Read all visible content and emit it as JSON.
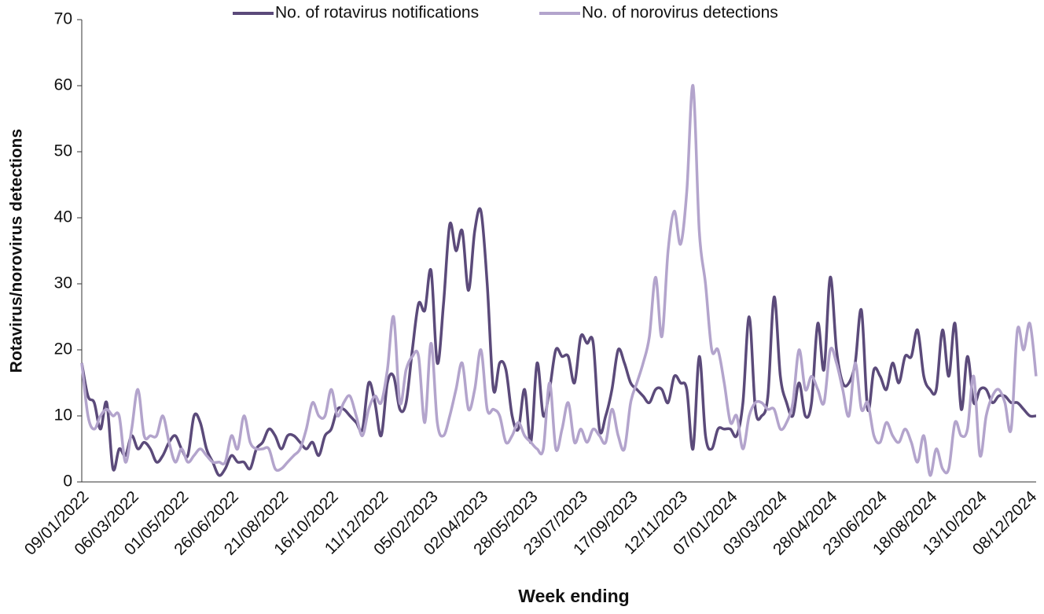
{
  "chart_data": {
    "type": "line",
    "x_label": "Week ending",
    "y_label": "Rotavirus/norovirus detections",
    "categories": [
      "09/01/2022",
      null,
      null,
      null,
      null,
      null,
      null,
      null,
      "06/03/2022",
      null,
      null,
      null,
      null,
      null,
      null,
      null,
      "01/05/2022",
      null,
      null,
      null,
      null,
      null,
      null,
      null,
      "26/06/2022",
      null,
      null,
      null,
      null,
      null,
      null,
      null,
      "21/08/2022",
      null,
      null,
      null,
      null,
      null,
      null,
      null,
      "16/10/2022",
      null,
      null,
      null,
      null,
      null,
      null,
      null,
      "11/12/2022",
      null,
      null,
      null,
      null,
      null,
      null,
      null,
      "05/02/2023",
      null,
      null,
      null,
      null,
      null,
      null,
      null,
      "02/04/2023",
      null,
      null,
      null,
      null,
      null,
      null,
      null,
      "28/05/2023",
      null,
      null,
      null,
      null,
      null,
      null,
      null,
      "23/07/2023",
      null,
      null,
      null,
      null,
      null,
      null,
      null,
      "17/09/2023",
      null,
      null,
      null,
      null,
      null,
      null,
      null,
      "12/11/2023",
      null,
      null,
      null,
      null,
      null,
      null,
      null,
      "07/01/2024",
      null,
      null,
      null,
      null,
      null,
      null,
      null,
      "03/03/2024",
      null,
      null,
      null,
      null,
      null,
      null,
      null,
      "28/04/2024",
      null,
      null,
      null,
      null,
      null,
      null,
      null,
      "23/06/2024",
      null,
      null,
      null,
      null,
      null,
      null,
      null,
      "18/08/2024",
      null,
      null,
      null,
      null,
      null,
      null,
      null,
      "13/10/2024",
      null,
      null,
      null,
      null,
      null,
      null,
      null,
      "08/12/2024",
      null
    ],
    "series": [
      {
        "name": "No. of rotavirus notifications",
        "color": "#5b4a7a",
        "values": [
          18,
          13,
          12,
          8,
          12,
          2,
          5,
          4,
          7,
          5,
          6,
          5,
          3,
          4,
          6,
          7,
          5,
          4,
          10,
          9,
          5,
          3,
          1,
          2,
          4,
          3,
          3,
          2,
          5,
          6,
          8,
          7,
          5,
          7,
          7,
          6,
          5,
          6,
          4,
          7,
          8,
          11,
          11,
          10,
          9,
          8,
          15,
          12,
          7,
          15,
          16,
          11,
          12,
          20,
          27,
          26,
          32,
          18,
          27,
          39,
          35,
          38,
          29,
          38,
          41,
          30,
          14,
          18,
          17,
          10,
          8,
          14,
          6,
          18,
          10,
          14,
          20,
          19,
          19,
          15,
          22,
          21,
          21,
          8,
          10,
          14,
          20,
          18,
          15,
          14,
          13,
          12,
          14,
          14,
          12,
          16,
          15,
          14,
          5,
          19,
          7,
          5,
          8,
          8,
          8,
          7,
          12,
          25,
          11,
          10,
          13,
          28,
          16,
          12,
          10,
          15,
          10,
          12,
          24,
          17,
          31,
          20,
          15,
          15,
          18,
          26,
          11,
          17,
          16,
          14,
          18,
          15,
          19,
          19,
          23,
          16,
          14,
          14,
          23,
          16,
          24,
          11,
          19,
          12,
          14,
          14,
          12,
          13,
          13,
          12,
          12,
          11,
          10,
          10
        ]
      },
      {
        "name": "No. of norovirus detections",
        "color": "#b3a4cc",
        "values": [
          18,
          10,
          8,
          10,
          11,
          10,
          10,
          3,
          8,
          14,
          7,
          7,
          7,
          10,
          6,
          3,
          5,
          3,
          4,
          5,
          4,
          3,
          3,
          3,
          7,
          5,
          10,
          6,
          5,
          5,
          5,
          2,
          2,
          3,
          4,
          5,
          8,
          12,
          10,
          10,
          14,
          10,
          12,
          13,
          10,
          7,
          11,
          13,
          12,
          17,
          25,
          12,
          17,
          19,
          19,
          9,
          21,
          9,
          7,
          10,
          14,
          18,
          11,
          14,
          20,
          11,
          11,
          10,
          6,
          7,
          9,
          7,
          6,
          5,
          5,
          15,
          5,
          8,
          12,
          6,
          8,
          6,
          8,
          7,
          6,
          11,
          7,
          5,
          12,
          15,
          18,
          22,
          31,
          22,
          35,
          41,
          36,
          44,
          60,
          38,
          30,
          20,
          20,
          15,
          9,
          10,
          5,
          10,
          12,
          12,
          11,
          11,
          8,
          9,
          12,
          20,
          14,
          16,
          14,
          12,
          20,
          18,
          14,
          10,
          18,
          11,
          12,
          7,
          6,
          9,
          7,
          6,
          8,
          6,
          3,
          7,
          1,
          5,
          2,
          2,
          9,
          7,
          8,
          16,
          4,
          10,
          13,
          14,
          12,
          8,
          23,
          20,
          24,
          16
        ]
      }
    ],
    "ylim": [
      0,
      70
    ],
    "yticks": [
      0,
      10,
      20,
      30,
      40,
      50,
      60,
      70
    ],
    "grid": false,
    "legend": "top"
  }
}
